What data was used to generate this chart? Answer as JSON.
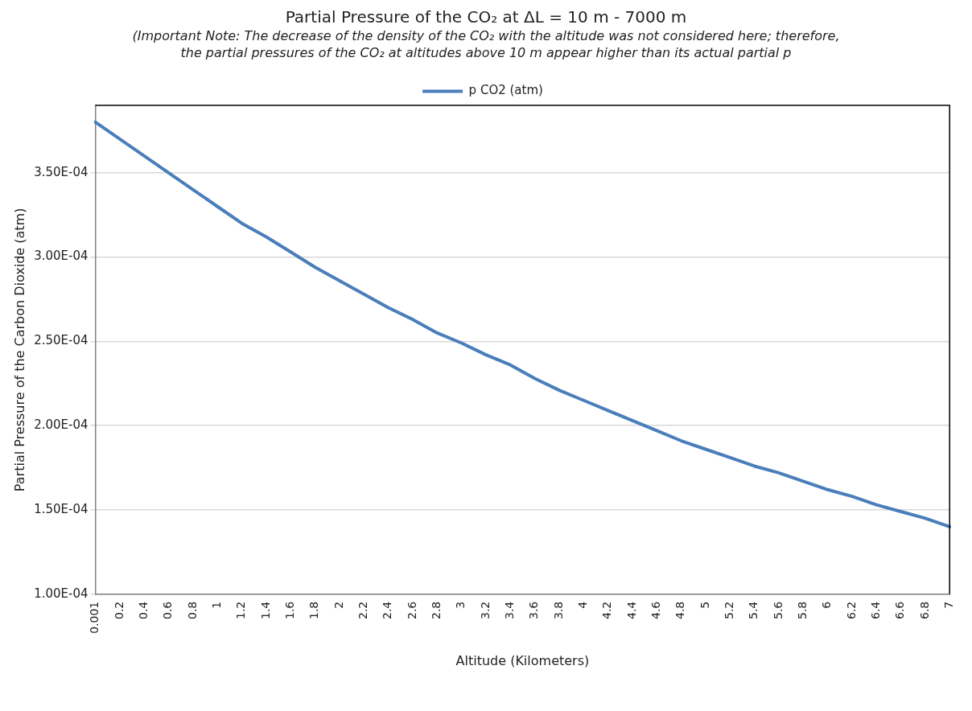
{
  "chart_data": {
    "type": "line",
    "title": "Partial Pressure of the CO₂ at ΔL = 10 m - 7000 m",
    "subtitle": "(Important Note: The decrease of the density of the CO₂ with the altitude was not considered here; therefore, the partial pressures of the CO₂ at altitudes above 10 m appear higher than its actual partial p",
    "xlabel": "Altitude (Kilometers)",
    "ylabel": "Partial Pressure of the Carbon Dioxide (atm)",
    "categories": [
      "0.001",
      "0.2",
      "0.4",
      "0.6",
      "0.8",
      "1",
      "1.2",
      "1.4",
      "1.6",
      "1.8",
      "2",
      "2.2",
      "2.4",
      "2.6",
      "2.8",
      "3",
      "3.2",
      "3.4",
      "3.6",
      "3.8",
      "4",
      "4.2",
      "4.4",
      "4.6",
      "4.8",
      "5",
      "5.2",
      "5.4",
      "5.6",
      "5.8",
      "6",
      "6.2",
      "6.4",
      "6.6",
      "6.8",
      "7"
    ],
    "series": [
      {
        "name": "p CO2 (atm)",
        "color": "#4a7ebb",
        "values": [
          0.00038,
          0.00037,
          0.00036,
          0.00035,
          0.00034,
          0.00033,
          0.00032,
          0.000312,
          0.000303,
          0.000294,
          0.000286,
          0.000278,
          0.00027,
          0.000263,
          0.000255,
          0.000249,
          0.000242,
          0.000236,
          0.000228,
          0.000221,
          0.000215,
          0.000209,
          0.000203,
          0.000197,
          0.000191,
          0.000186,
          0.000181,
          0.000176,
          0.000172,
          0.000167,
          0.000162,
          0.000158,
          0.000153,
          0.000149,
          0.000145,
          0.00014
        ]
      }
    ],
    "ylim": [
      0.0001,
      0.00039
    ],
    "yticks": [
      {
        "value": 0.0001,
        "label": "1.00E-04"
      },
      {
        "value": 0.00015,
        "label": "1.50E-04"
      },
      {
        "value": 0.0002,
        "label": "2.00E-04"
      },
      {
        "value": 0.00025,
        "label": "2.50E-04"
      },
      {
        "value": 0.0003,
        "label": "3.00E-04"
      },
      {
        "value": 0.00035,
        "label": "3.50E-04"
      }
    ],
    "grid": "y",
    "legend": "top",
    "marker": "none",
    "line_style": "solid"
  }
}
